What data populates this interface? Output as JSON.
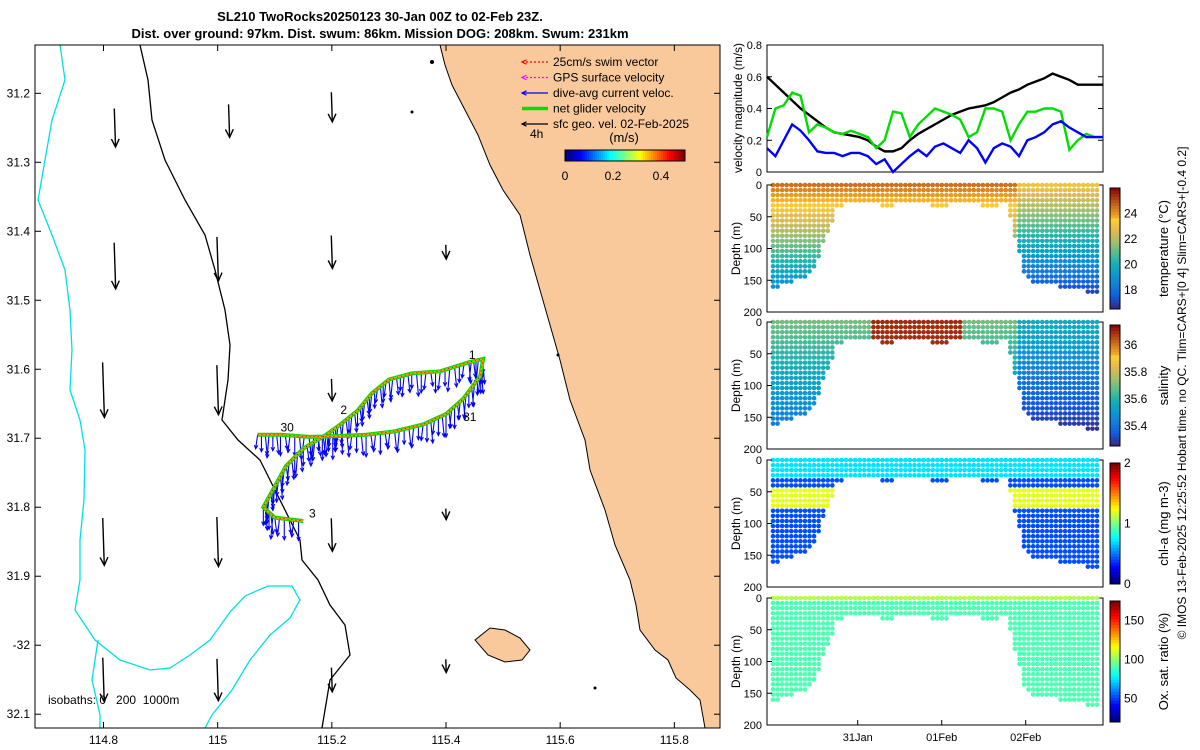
{
  "title": {
    "line1": "SL210 TwoRocks20250123 30-Jan 00Z to 02-Feb 23Z.",
    "line2": "Dist. over ground: 97km. Dist. swum: 86km. Mission DOG: 208km. Swum: 231km"
  },
  "colors": {
    "land": "#f9c99b",
    "isobath_shallow": "#00e0e0",
    "isobath_deep": "#000000",
    "swim": "#ff0000",
    "gps": "#ff00ff",
    "dive_current": "#0000ff",
    "net_velocity": "#00dd00",
    "geo_vel": "#000000"
  },
  "chart_data": [
    {
      "type": "map",
      "name": "glider-track-map",
      "x": {
        "ticks": [
          114.8,
          115,
          115.2,
          115.4,
          115.6,
          115.8
        ],
        "tick_labels": [
          "114.8",
          "115",
          "115.2",
          "115.4",
          "115.6",
          "115.8"
        ],
        "range": [
          114.68,
          115.88
        ]
      },
      "y": {
        "ticks": [
          -31.2,
          -31.3,
          -31.4,
          -31.5,
          -31.6,
          -31.7,
          -31.8,
          -31.9,
          -32,
          -32.1
        ],
        "tick_labels": [
          "31.2",
          "31.3",
          "31.4",
          "31.5",
          "31.6",
          "31.7",
          "31.8",
          "31.9",
          "-32",
          "32.1"
        ],
        "range": [
          -32.12,
          -31.13
        ]
      },
      "legend": [
        {
          "label": "25cm/s swim vector",
          "color": "#ff0000",
          "style": "dotted-arrow"
        },
        {
          "label": "GPS surface velocity",
          "color": "#ff00ff",
          "style": "dotted-arrow"
        },
        {
          "label": "dive-avg current veloc.",
          "color": "#0000ff",
          "style": "arrow"
        },
        {
          "label": "net glider velocity",
          "color": "#00dd00",
          "style": "thick-line"
        },
        {
          "label": "sfc geo. vel. 02-Feb-2025",
          "color": "#000000",
          "style": "arrow"
        }
      ],
      "legend_scale_label": "4h",
      "colorbar": {
        "label": "(m/s)",
        "ticks": [
          0,
          0.2,
          0.4
        ],
        "tick_labels": [
          "0",
          "0.2",
          "0.4"
        ],
        "range": [
          0,
          0.5
        ]
      },
      "isobaths_label": "isobaths: 0   200  1000m",
      "day_labels": [
        {
          "text": "30",
          "lon": 115.11,
          "lat": -31.69
        },
        {
          "text": "2",
          "lon": 115.215,
          "lat": -31.665
        },
        {
          "text": "31",
          "lon": 115.43,
          "lat": -31.675
        },
        {
          "text": "1",
          "lon": 115.44,
          "lat": -31.585
        },
        {
          "text": "3",
          "lon": 115.16,
          "lat": -31.815
        }
      ],
      "geo_vectors": [
        {
          "lon": 114.82,
          "lat": -31.25,
          "u": 0.0,
          "v": -0.35
        },
        {
          "lon": 115.02,
          "lat": -31.24,
          "u": 0.0,
          "v": -0.3
        },
        {
          "lon": 115.2,
          "lat": -31.22,
          "u": 0.0,
          "v": -0.27
        },
        {
          "lon": 114.82,
          "lat": -31.45,
          "u": 0.0,
          "v": -0.42
        },
        {
          "lon": 115.0,
          "lat": -31.44,
          "u": 0.0,
          "v": -0.4
        },
        {
          "lon": 115.2,
          "lat": -31.43,
          "u": 0.0,
          "v": -0.3
        },
        {
          "lon": 115.4,
          "lat": -31.43,
          "u": 0.0,
          "v": -0.13
        },
        {
          "lon": 114.8,
          "lat": -31.63,
          "u": 0.0,
          "v": -0.5
        },
        {
          "lon": 115.0,
          "lat": -31.63,
          "u": 0.0,
          "v": -0.45
        },
        {
          "lon": 115.2,
          "lat": -31.63,
          "u": 0.0,
          "v": -0.2
        },
        {
          "lon": 114.8,
          "lat": -31.85,
          "u": 0.0,
          "v": -0.43
        },
        {
          "lon": 115.0,
          "lat": -31.85,
          "u": 0.0,
          "v": -0.45
        },
        {
          "lon": 115.2,
          "lat": -31.84,
          "u": 0.0,
          "v": -0.3
        },
        {
          "lon": 115.4,
          "lat": -31.81,
          "u": 0.0,
          "v": -0.1
        },
        {
          "lon": 114.8,
          "lat": -32.05,
          "u": 0.0,
          "v": -0.4
        },
        {
          "lon": 115.0,
          "lat": -32.05,
          "u": 0.0,
          "v": -0.38
        },
        {
          "lon": 115.2,
          "lat": -32.05,
          "u": 0.0,
          "v": -0.22
        },
        {
          "lon": 115.4,
          "lat": -32.03,
          "u": 0.0,
          "v": -0.12
        }
      ],
      "track": [
        [
          115.07,
          -31.695
        ],
        [
          115.11,
          -31.695
        ],
        [
          115.16,
          -31.698
        ],
        [
          115.21,
          -31.697
        ],
        [
          115.26,
          -31.695
        ],
        [
          115.31,
          -31.69
        ],
        [
          115.36,
          -31.68
        ],
        [
          115.4,
          -31.665
        ],
        [
          115.43,
          -31.643
        ],
        [
          115.46,
          -31.61
        ],
        [
          115.465,
          -31.585
        ],
        [
          115.44,
          -31.59
        ],
        [
          115.39,
          -31.603
        ],
        [
          115.34,
          -31.606
        ],
        [
          115.3,
          -31.615
        ],
        [
          115.27,
          -31.635
        ],
        [
          115.245,
          -31.66
        ],
        [
          115.215,
          -31.68
        ],
        [
          115.19,
          -31.695
        ],
        [
          115.15,
          -31.715
        ],
        [
          115.12,
          -31.74
        ],
        [
          115.1,
          -31.77
        ],
        [
          115.08,
          -31.8
        ],
        [
          115.1,
          -31.815
        ],
        [
          115.15,
          -31.82
        ]
      ]
    },
    {
      "type": "line",
      "name": "velocity-magnitude-plot",
      "ylabel": "velocity magnitude (m/s)",
      "ylim": [
        0,
        0.8
      ],
      "yticks": [
        0,
        0.2,
        0.4,
        0.6,
        0.8
      ],
      "x": [
        0,
        0.1,
        0.2,
        0.3,
        0.4,
        0.5,
        0.6,
        0.7,
        0.8,
        0.9,
        1.0,
        1.1,
        1.2,
        1.3,
        1.4,
        1.5,
        1.6,
        1.7,
        1.8,
        1.9,
        2.0,
        2.1,
        2.2,
        2.3,
        2.4,
        2.5,
        2.6,
        2.7,
        2.8,
        2.9,
        3.0,
        3.1,
        3.2,
        3.3,
        3.4,
        3.5,
        3.6,
        3.7,
        3.8,
        3.9,
        4.0
      ],
      "xlim": [
        0,
        4
      ],
      "series": [
        {
          "name": "geo",
          "color": "#000000",
          "values": [
            0.6,
            0.55,
            0.5,
            0.45,
            0.4,
            0.36,
            0.32,
            0.28,
            0.25,
            0.24,
            0.23,
            0.22,
            0.2,
            0.16,
            0.13,
            0.13,
            0.15,
            0.2,
            0.24,
            0.27,
            0.3,
            0.33,
            0.36,
            0.38,
            0.4,
            0.41,
            0.42,
            0.44,
            0.47,
            0.5,
            0.52,
            0.55,
            0.57,
            0.59,
            0.62,
            0.6,
            0.58,
            0.55,
            0.55,
            0.55,
            0.55
          ]
        },
        {
          "name": "net",
          "color": "#00dd00",
          "values": [
            0.22,
            0.4,
            0.42,
            0.5,
            0.48,
            0.25,
            0.3,
            0.28,
            0.25,
            0.24,
            0.26,
            0.24,
            0.22,
            0.15,
            0.2,
            0.38,
            0.37,
            0.22,
            0.3,
            0.35,
            0.4,
            0.38,
            0.36,
            0.33,
            0.22,
            0.25,
            0.4,
            0.4,
            0.38,
            0.2,
            0.3,
            0.38,
            0.38,
            0.4,
            0.4,
            0.38,
            0.14,
            0.2,
            0.24,
            0.22,
            0.22
          ]
        },
        {
          "name": "dive-avg",
          "color": "#0000ff",
          "values": [
            0.15,
            0.1,
            0.2,
            0.3,
            0.26,
            0.2,
            0.13,
            0.12,
            0.12,
            0.1,
            0.12,
            0.12,
            0.1,
            0.05,
            0.08,
            0.0,
            0.05,
            0.1,
            0.14,
            0.1,
            0.16,
            0.18,
            0.15,
            0.12,
            0.2,
            0.15,
            0.06,
            0.15,
            0.18,
            0.16,
            0.1,
            0.2,
            0.22,
            0.25,
            0.3,
            0.32,
            0.28,
            0.25,
            0.22,
            0.22,
            0.22
          ]
        }
      ]
    },
    {
      "type": "heatmap",
      "name": "temperature-section",
      "ylabel": "Depth (m)",
      "yticks": [
        0,
        50,
        100,
        150,
        200
      ],
      "ylim": [
        0,
        200
      ],
      "cbar_label": "temperature (°C)",
      "cbar_ticks": [
        18,
        20,
        22,
        24
      ],
      "cbar_range": [
        16.5,
        26
      ],
      "colormap": "parula"
    },
    {
      "type": "heatmap",
      "name": "salinity-section",
      "ylabel": "Depth (m)",
      "yticks": [
        0,
        50,
        100,
        150,
        200
      ],
      "ylim": [
        0,
        200
      ],
      "cbar_label": "salinity",
      "cbar_ticks": [
        35.4,
        35.6,
        35.8,
        36
      ],
      "cbar_range": [
        35.25,
        36.15
      ],
      "colormap": "parula"
    },
    {
      "type": "heatmap",
      "name": "chla-section",
      "ylabel": "Depth (m)",
      "yticks": [
        0,
        50,
        100,
        150,
        200
      ],
      "ylim": [
        0,
        200
      ],
      "cbar_label": "chl-a (mg m-3)",
      "cbar_ticks": [
        0,
        1,
        2
      ],
      "cbar_range": [
        0,
        2
      ],
      "colormap": "jet"
    },
    {
      "type": "heatmap",
      "name": "oxygen-section",
      "ylabel": "Depth (m)",
      "yticks": [
        0,
        50,
        100,
        150,
        200
      ],
      "ylim": [
        0,
        200
      ],
      "xticks": [
        "31Jan",
        "01Feb",
        "02Feb"
      ],
      "cbar_label": "Ox. sat. ratio (%)",
      "cbar_ticks": [
        50,
        100,
        150
      ],
      "cbar_range": [
        20,
        175
      ],
      "colormap": "jet"
    }
  ],
  "side_note": "© IMOS 13-Feb-2025 12:25:52 Hobart time. no QC. Tlim=CARS+[0 4] Slim=CARS+[-0.4 0.2]"
}
